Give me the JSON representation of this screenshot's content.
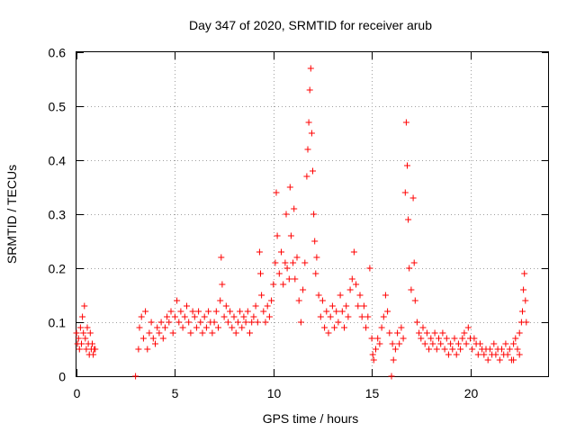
{
  "chart_data": {
    "type": "scatter",
    "title": "Day 347 of 2020, SRMTID for receiver arub",
    "xlabel": "GPS time / hours",
    "ylabel": "SRMTID / TECUs",
    "xlim": [
      0,
      24
    ],
    "ylim": [
      0,
      0.6
    ],
    "xticks": [
      0,
      5,
      10,
      15,
      20
    ],
    "xtick_labels": [
      "0",
      "5",
      "10",
      "15",
      "20"
    ],
    "yticks": [
      0,
      0.1,
      0.2,
      0.3,
      0.4,
      0.5,
      0.6
    ],
    "ytick_labels": [
      "0",
      "0.1",
      "0.2",
      "0.3",
      "0.4",
      "0.5",
      "0.6"
    ],
    "grid": true,
    "marker": "+",
    "series": [
      {
        "name": "SRMTID",
        "color": "#ff0000",
        "points": [
          [
            0.0,
            0.08
          ],
          [
            0.05,
            0.06
          ],
          [
            0.1,
            0.07
          ],
          [
            0.15,
            0.05
          ],
          [
            0.2,
            0.09
          ],
          [
            0.25,
            0.06
          ],
          [
            0.3,
            0.11
          ],
          [
            0.35,
            0.08
          ],
          [
            0.4,
            0.13
          ],
          [
            0.45,
            0.07
          ],
          [
            0.5,
            0.05
          ],
          [
            0.55,
            0.09
          ],
          [
            0.6,
            0.06
          ],
          [
            0.65,
            0.04
          ],
          [
            0.7,
            0.08
          ],
          [
            0.75,
            0.05
          ],
          [
            0.8,
            0.06
          ],
          [
            0.85,
            0.04
          ],
          [
            0.9,
            0.05
          ],
          [
            0.95,
            0.05
          ],
          [
            3.0,
            0.0
          ],
          [
            3.15,
            0.05
          ],
          [
            3.2,
            0.09
          ],
          [
            3.3,
            0.11
          ],
          [
            3.4,
            0.07
          ],
          [
            3.5,
            0.12
          ],
          [
            3.6,
            0.05
          ],
          [
            3.7,
            0.08
          ],
          [
            3.8,
            0.1
          ],
          [
            3.9,
            0.07
          ],
          [
            4.0,
            0.06
          ],
          [
            4.1,
            0.09
          ],
          [
            4.2,
            0.08
          ],
          [
            4.3,
            0.1
          ],
          [
            4.4,
            0.07
          ],
          [
            4.5,
            0.09
          ],
          [
            4.6,
            0.11
          ],
          [
            4.7,
            0.1
          ],
          [
            4.8,
            0.12
          ],
          [
            4.9,
            0.08
          ],
          [
            5.0,
            0.11
          ],
          [
            5.1,
            0.14
          ],
          [
            5.2,
            0.1
          ],
          [
            5.3,
            0.12
          ],
          [
            5.4,
            0.09
          ],
          [
            5.5,
            0.11
          ],
          [
            5.6,
            0.13
          ],
          [
            5.7,
            0.1
          ],
          [
            5.8,
            0.08
          ],
          [
            5.9,
            0.12
          ],
          [
            6.0,
            0.11
          ],
          [
            6.1,
            0.09
          ],
          [
            6.2,
            0.12
          ],
          [
            6.3,
            0.1
          ],
          [
            6.4,
            0.08
          ],
          [
            6.5,
            0.11
          ],
          [
            6.6,
            0.09
          ],
          [
            6.7,
            0.12
          ],
          [
            6.8,
            0.1
          ],
          [
            6.9,
            0.08
          ],
          [
            7.0,
            0.1
          ],
          [
            7.1,
            0.12
          ],
          [
            7.2,
            0.09
          ],
          [
            7.3,
            0.14
          ],
          [
            7.35,
            0.22
          ],
          [
            7.4,
            0.17
          ],
          [
            7.5,
            0.11
          ],
          [
            7.6,
            0.13
          ],
          [
            7.7,
            0.1
          ],
          [
            7.8,
            0.12
          ],
          [
            7.9,
            0.09
          ],
          [
            8.0,
            0.11
          ],
          [
            8.1,
            0.08
          ],
          [
            8.2,
            0.1
          ],
          [
            8.3,
            0.12
          ],
          [
            8.4,
            0.09
          ],
          [
            8.5,
            0.11
          ],
          [
            8.6,
            0.1
          ],
          [
            8.7,
            0.12
          ],
          [
            8.8,
            0.08
          ],
          [
            8.9,
            0.1
          ],
          [
            9.0,
            0.11
          ],
          [
            9.1,
            0.13
          ],
          [
            9.2,
            0.1
          ],
          [
            9.3,
            0.23
          ],
          [
            9.35,
            0.19
          ],
          [
            9.4,
            0.15
          ],
          [
            9.5,
            0.12
          ],
          [
            9.6,
            0.1
          ],
          [
            9.7,
            0.13
          ],
          [
            9.8,
            0.11
          ],
          [
            9.9,
            0.14
          ],
          [
            10.0,
            0.17
          ],
          [
            10.1,
            0.21
          ],
          [
            10.15,
            0.34
          ],
          [
            10.2,
            0.26
          ],
          [
            10.3,
            0.19
          ],
          [
            10.4,
            0.23
          ],
          [
            10.5,
            0.17
          ],
          [
            10.6,
            0.21
          ],
          [
            10.65,
            0.3
          ],
          [
            10.7,
            0.2
          ],
          [
            10.8,
            0.18
          ],
          [
            10.85,
            0.35
          ],
          [
            10.9,
            0.26
          ],
          [
            11.0,
            0.21
          ],
          [
            11.05,
            0.31
          ],
          [
            11.1,
            0.18
          ],
          [
            11.2,
            0.22
          ],
          [
            11.3,
            0.14
          ],
          [
            11.4,
            0.1
          ],
          [
            11.5,
            0.16
          ],
          [
            11.6,
            0.21
          ],
          [
            11.7,
            0.37
          ],
          [
            11.75,
            0.42
          ],
          [
            11.8,
            0.47
          ],
          [
            11.85,
            0.53
          ],
          [
            11.9,
            0.57
          ],
          [
            11.95,
            0.45
          ],
          [
            12.0,
            0.38
          ],
          [
            12.05,
            0.3
          ],
          [
            12.1,
            0.25
          ],
          [
            12.15,
            0.19
          ],
          [
            12.2,
            0.22
          ],
          [
            12.3,
            0.15
          ],
          [
            12.4,
            0.11
          ],
          [
            12.5,
            0.14
          ],
          [
            12.6,
            0.09
          ],
          [
            12.7,
            0.12
          ],
          [
            12.8,
            0.08
          ],
          [
            12.9,
            0.11
          ],
          [
            13.0,
            0.13
          ],
          [
            13.1,
            0.09
          ],
          [
            13.2,
            0.12
          ],
          [
            13.3,
            0.1
          ],
          [
            13.4,
            0.15
          ],
          [
            13.5,
            0.12
          ],
          [
            13.6,
            0.09
          ],
          [
            13.7,
            0.13
          ],
          [
            13.8,
            0.11
          ],
          [
            13.9,
            0.16
          ],
          [
            14.0,
            0.18
          ],
          [
            14.1,
            0.23
          ],
          [
            14.2,
            0.17
          ],
          [
            14.3,
            0.13
          ],
          [
            14.4,
            0.15
          ],
          [
            14.5,
            0.11
          ],
          [
            14.6,
            0.13
          ],
          [
            14.7,
            0.09
          ],
          [
            14.8,
            0.11
          ],
          [
            14.9,
            0.2
          ],
          [
            15.0,
            0.07
          ],
          [
            15.05,
            0.04
          ],
          [
            15.1,
            0.03
          ],
          [
            15.2,
            0.05
          ],
          [
            15.3,
            0.07
          ],
          [
            15.4,
            0.06
          ],
          [
            15.5,
            0.09
          ],
          [
            15.6,
            0.11
          ],
          [
            15.7,
            0.15
          ],
          [
            15.8,
            0.12
          ],
          [
            15.9,
            0.08
          ],
          [
            16.0,
            0.0
          ],
          [
            16.05,
            0.06
          ],
          [
            16.1,
            0.03
          ],
          [
            16.2,
            0.05
          ],
          [
            16.3,
            0.08
          ],
          [
            16.4,
            0.06
          ],
          [
            16.5,
            0.09
          ],
          [
            16.6,
            0.07
          ],
          [
            16.7,
            0.34
          ],
          [
            16.75,
            0.47
          ],
          [
            16.8,
            0.39
          ],
          [
            16.85,
            0.29
          ],
          [
            16.9,
            0.2
          ],
          [
            17.0,
            0.16
          ],
          [
            17.1,
            0.33
          ],
          [
            17.15,
            0.21
          ],
          [
            17.2,
            0.14
          ],
          [
            17.3,
            0.1
          ],
          [
            17.4,
            0.08
          ],
          [
            17.5,
            0.07
          ],
          [
            17.6,
            0.09
          ],
          [
            17.7,
            0.06
          ],
          [
            17.8,
            0.08
          ],
          [
            17.9,
            0.05
          ],
          [
            18.0,
            0.07
          ],
          [
            18.1,
            0.06
          ],
          [
            18.2,
            0.08
          ],
          [
            18.3,
            0.05
          ],
          [
            18.4,
            0.07
          ],
          [
            18.5,
            0.06
          ],
          [
            18.6,
            0.08
          ],
          [
            18.7,
            0.05
          ],
          [
            18.8,
            0.07
          ],
          [
            18.9,
            0.04
          ],
          [
            19.0,
            0.06
          ],
          [
            19.1,
            0.05
          ],
          [
            19.2,
            0.07
          ],
          [
            19.3,
            0.04
          ],
          [
            19.4,
            0.06
          ],
          [
            19.5,
            0.05
          ],
          [
            19.6,
            0.07
          ],
          [
            19.7,
            0.08
          ],
          [
            19.8,
            0.06
          ],
          [
            19.9,
            0.09
          ],
          [
            20.0,
            0.07
          ],
          [
            20.1,
            0.05
          ],
          [
            20.2,
            0.07
          ],
          [
            20.3,
            0.06
          ],
          [
            20.4,
            0.04
          ],
          [
            20.5,
            0.06
          ],
          [
            20.6,
            0.05
          ],
          [
            20.7,
            0.04
          ],
          [
            20.8,
            0.05
          ],
          [
            20.9,
            0.03
          ],
          [
            21.0,
            0.05
          ],
          [
            21.1,
            0.04
          ],
          [
            21.2,
            0.06
          ],
          [
            21.3,
            0.04
          ],
          [
            21.4,
            0.05
          ],
          [
            21.5,
            0.03
          ],
          [
            21.6,
            0.05
          ],
          [
            21.7,
            0.04
          ],
          [
            21.8,
            0.06
          ],
          [
            21.9,
            0.04
          ],
          [
            22.0,
            0.05
          ],
          [
            22.1,
            0.03
          ],
          [
            22.2,
            0.06
          ],
          [
            22.3,
            0.07
          ],
          [
            22.4,
            0.05
          ],
          [
            22.5,
            0.08
          ],
          [
            22.6,
            0.1
          ],
          [
            22.65,
            0.12
          ],
          [
            22.7,
            0.16
          ],
          [
            22.75,
            0.19
          ],
          [
            22.8,
            0.14
          ],
          [
            22.85,
            0.1
          ],
          [
            22.5,
            0.04
          ],
          [
            22.2,
            0.03
          ]
        ]
      }
    ]
  }
}
